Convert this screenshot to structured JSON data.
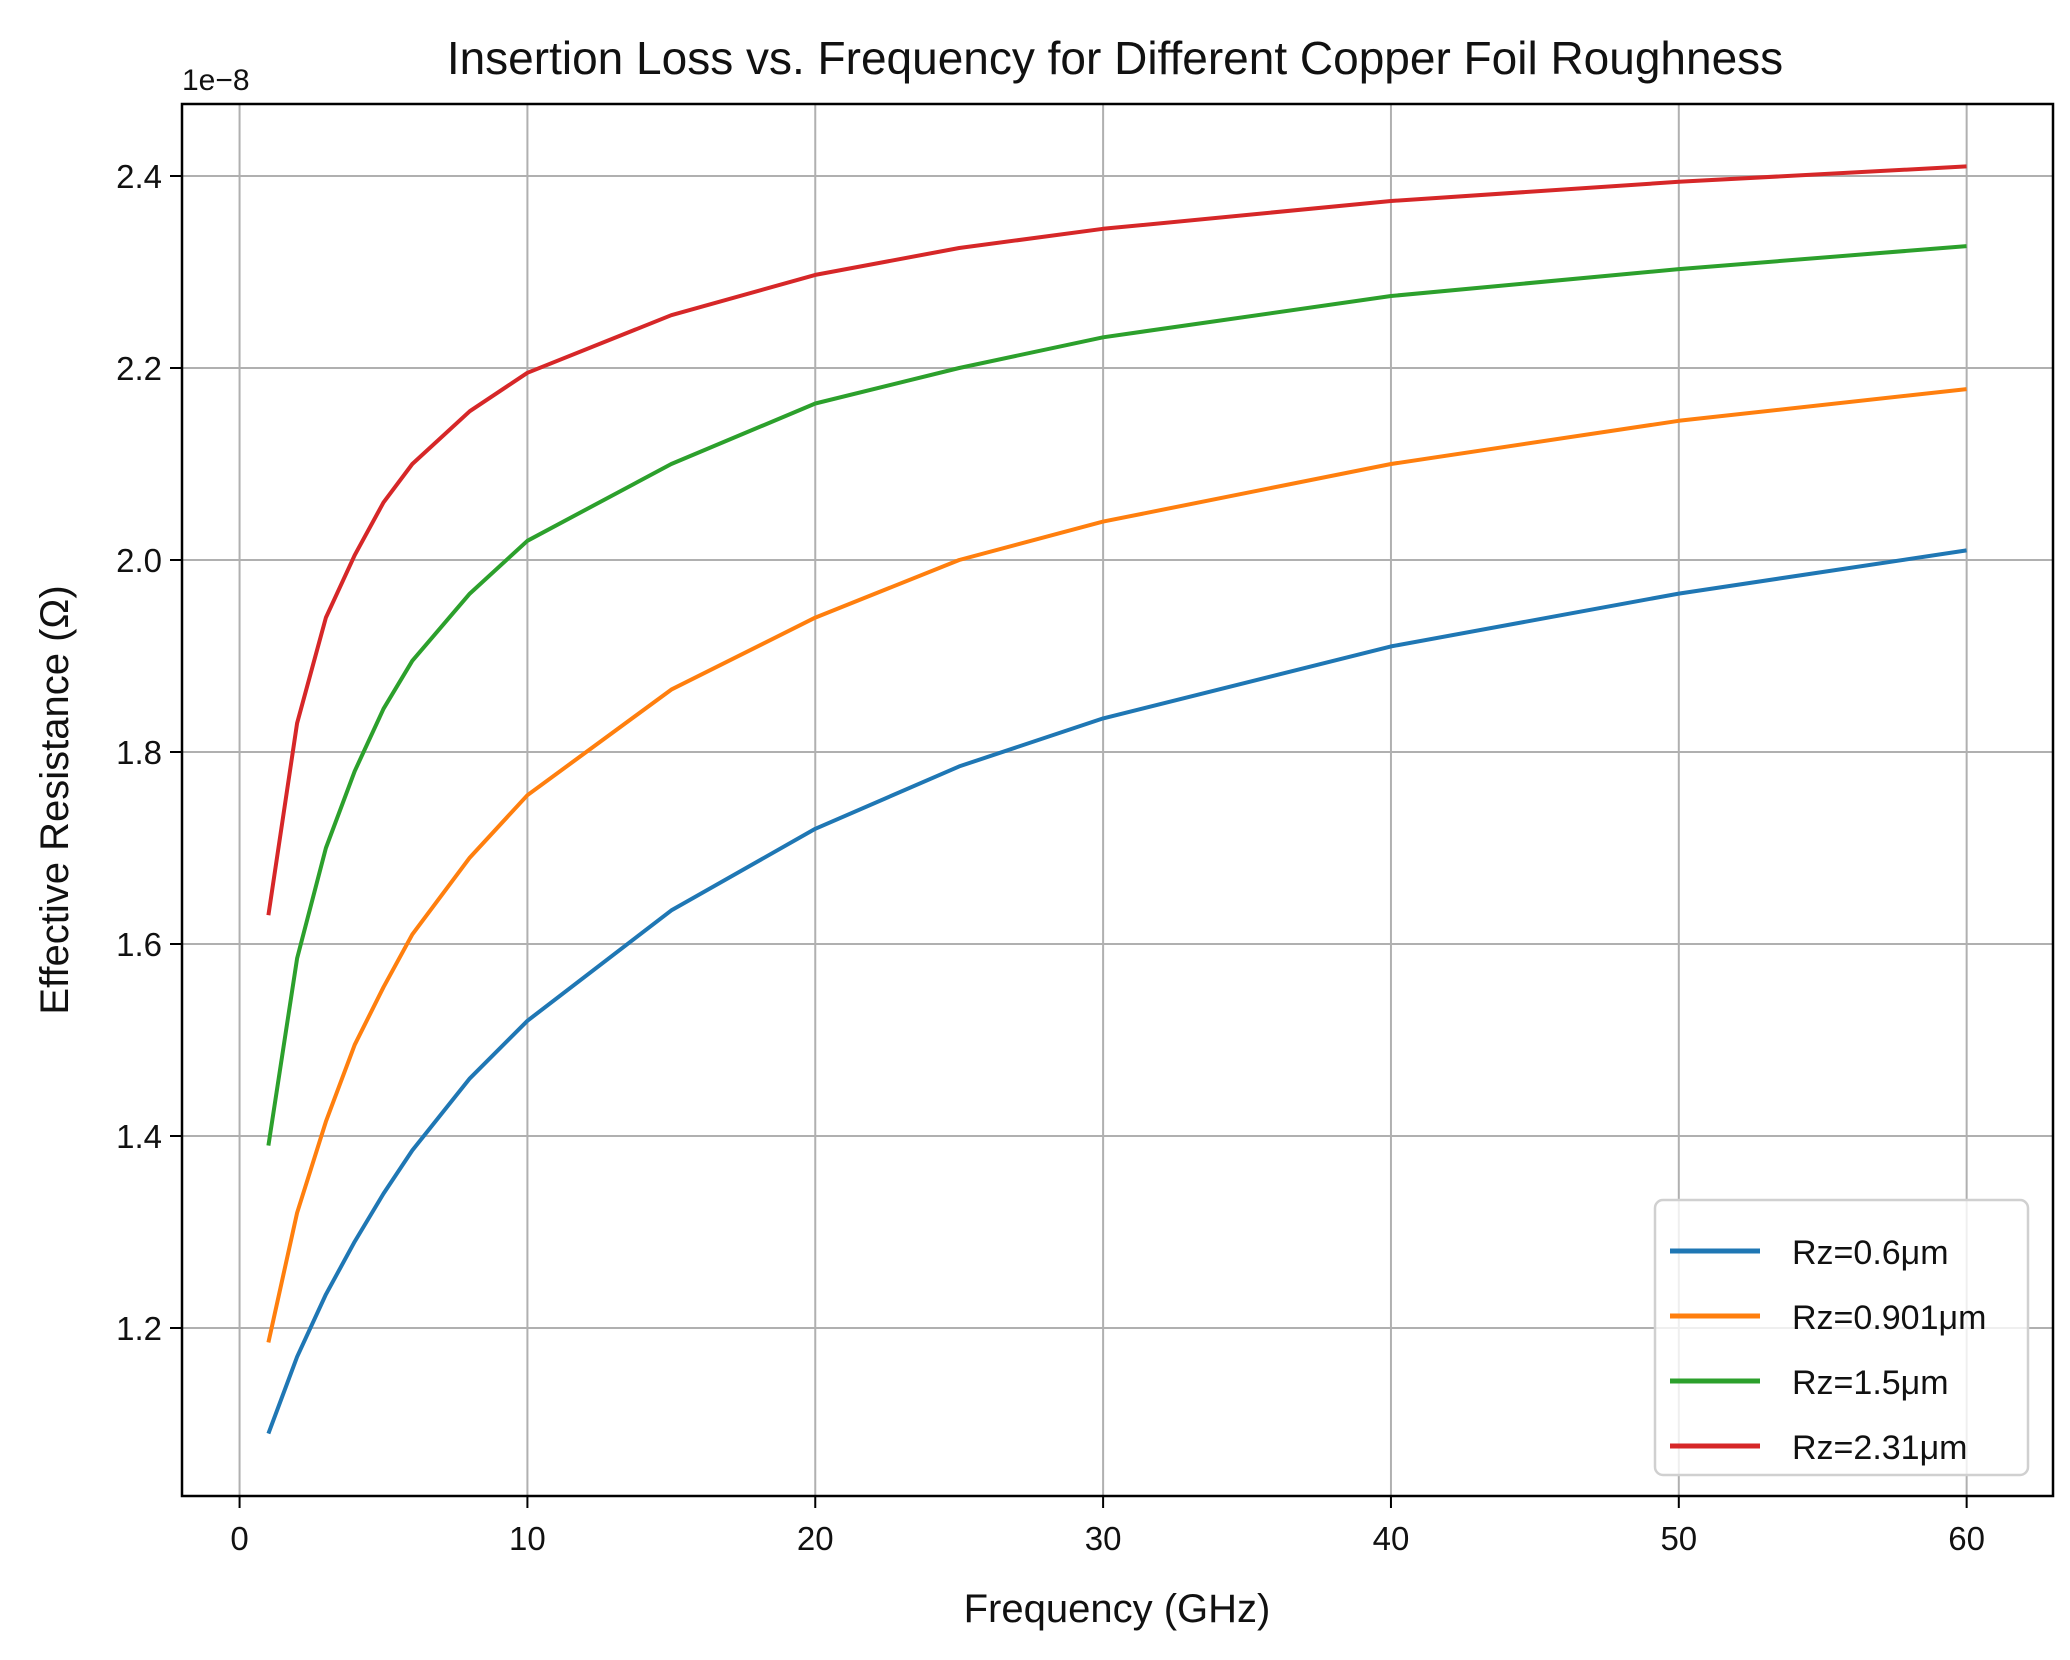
{
  "chart_data": {
    "type": "line",
    "title": "Insertion Loss vs. Frequency for Different Copper Foil Roughness",
    "xlabel": "Frequency (GHz)",
    "ylabel": "Effective Resistance (Ω)",
    "y_offset_label": "1e−8",
    "xlim": [
      -2,
      63
    ],
    "ylim": [
      1.025,
      2.475
    ],
    "xticks": [
      0,
      10,
      20,
      30,
      40,
      50,
      60
    ],
    "yticks": [
      1.2,
      1.4,
      1.6,
      1.8,
      2.0,
      2.2,
      2.4
    ],
    "ytick_labels": [
      "1.2",
      "1.4",
      "1.6",
      "1.8",
      "2.0",
      "2.2",
      "2.4"
    ],
    "grid": true,
    "legend_position": "lower-right",
    "x": [
      1,
      2,
      3,
      4,
      5,
      6,
      8,
      10,
      15,
      20,
      25,
      30,
      40,
      50,
      60
    ],
    "series": [
      {
        "name": "Rz=0.6μm",
        "color": "#1f77b4",
        "values": [
          1.09,
          1.17,
          1.235,
          1.29,
          1.34,
          1.385,
          1.46,
          1.52,
          1.635,
          1.72,
          1.785,
          1.835,
          1.91,
          1.965,
          2.01
        ]
      },
      {
        "name": "Rz=0.901μm",
        "color": "#ff7f0e",
        "values": [
          1.185,
          1.32,
          1.415,
          1.495,
          1.555,
          1.61,
          1.69,
          1.755,
          1.865,
          1.94,
          2.0,
          2.04,
          2.1,
          2.145,
          2.178
        ]
      },
      {
        "name": "Rz=1.5μm",
        "color": "#2ca02c",
        "values": [
          1.39,
          1.585,
          1.7,
          1.78,
          1.845,
          1.895,
          1.965,
          2.02,
          2.1,
          2.163,
          2.2,
          2.232,
          2.275,
          2.303,
          2.327
        ]
      },
      {
        "name": "Rz=2.31μm",
        "color": "#d62728",
        "values": [
          1.63,
          1.83,
          1.94,
          2.005,
          2.06,
          2.1,
          2.155,
          2.195,
          2.255,
          2.297,
          2.325,
          2.345,
          2.374,
          2.394,
          2.41
        ]
      }
    ]
  }
}
